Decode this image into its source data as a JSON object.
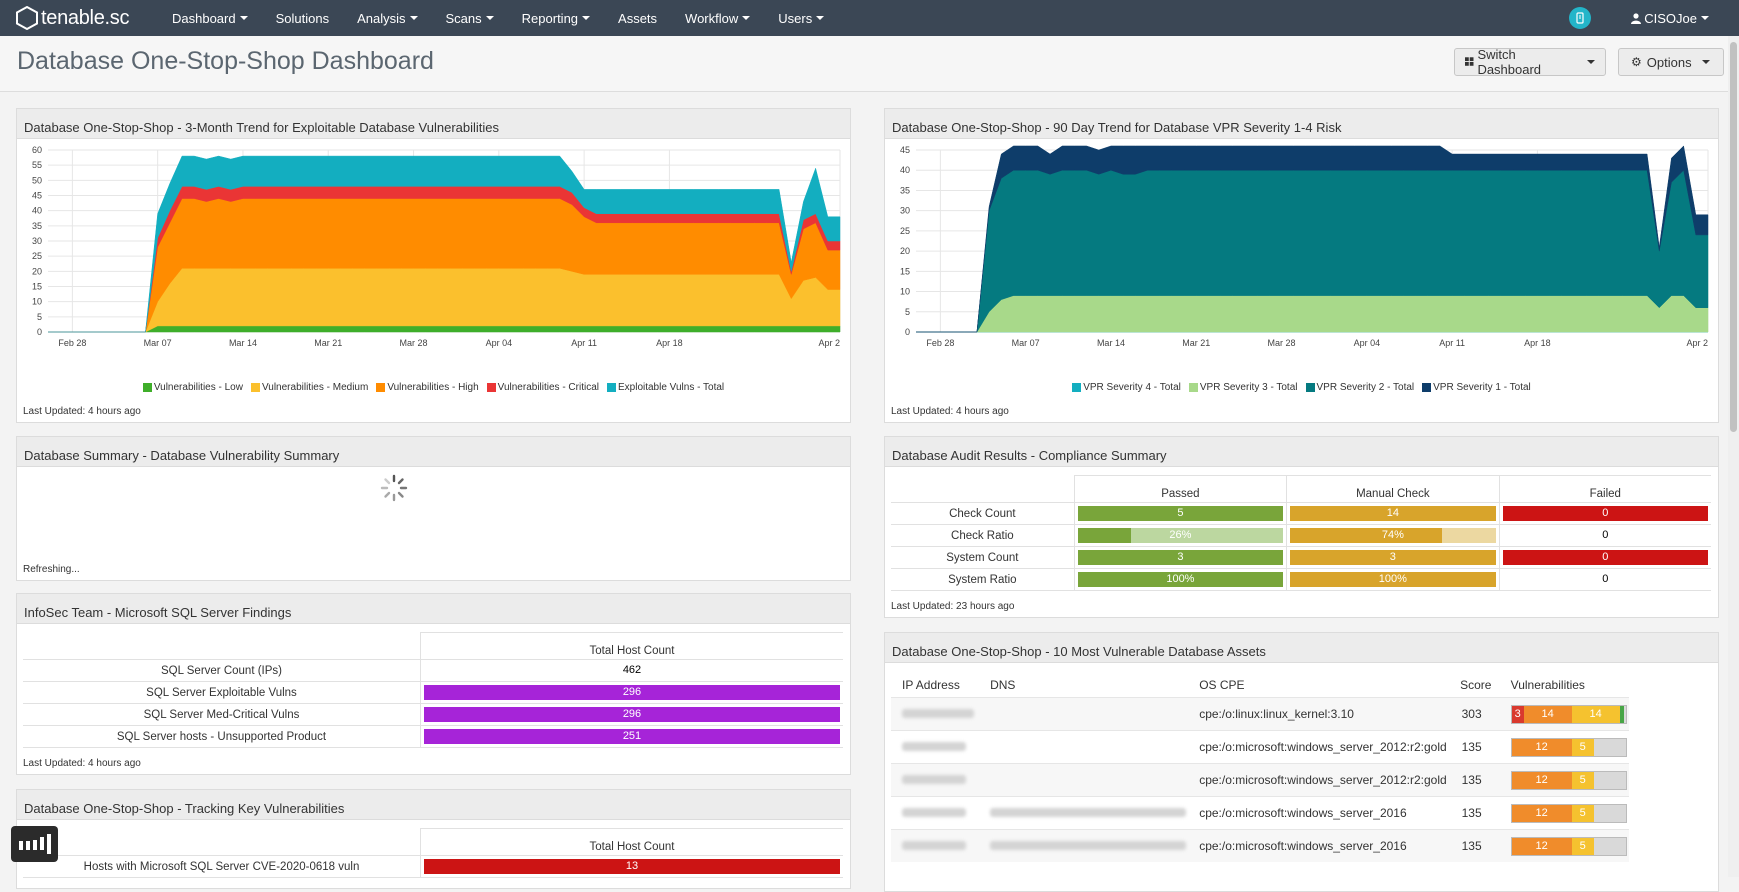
{
  "app": {
    "logo_text": "tenable.sc"
  },
  "nav": {
    "items": [
      {
        "label": "Dashboard",
        "caret": true
      },
      {
        "label": "Solutions",
        "caret": false
      },
      {
        "label": "Analysis",
        "caret": true
      },
      {
        "label": "Scans",
        "caret": true
      },
      {
        "label": "Reporting",
        "caret": true
      },
      {
        "label": "Assets",
        "caret": false
      },
      {
        "label": "Workflow",
        "caret": true
      },
      {
        "label": "Users",
        "caret": true
      }
    ],
    "user": "CISOJoe"
  },
  "page": {
    "title": "Database One-Stop-Shop Dashboard",
    "switch_dashboard": "Switch Dashboard",
    "options": "Options"
  },
  "panels": {
    "trend_exploitable": {
      "title": "Database One-Stop-Shop - 3-Month Trend for Exploitable Database Vulnerabilities",
      "last_updated": "Last Updated: 4 hours ago"
    },
    "trend_vpr": {
      "title": "Database One-Stop-Shop - 90 Day Trend for Database VPR Severity 1-4 Risk",
      "last_updated": "Last Updated: 4 hours ago"
    },
    "db_summary": {
      "title": "Database Summary - Database Vulnerability Summary",
      "status": "Refreshing..."
    },
    "audit": {
      "title": "Database Audit Results - Compliance Summary",
      "last_updated": "Last Updated: 23 hours ago",
      "columns": [
        "Passed",
        "Manual Check",
        "Failed"
      ],
      "rows": [
        {
          "label": "Check Count",
          "passed": "5",
          "manual": "14",
          "failed": "0"
        },
        {
          "label": "Check Ratio",
          "passed": "26%",
          "manual": "74%",
          "failed": "0"
        },
        {
          "label": "System Count",
          "passed": "3",
          "manual": "3",
          "failed": "0"
        },
        {
          "label": "System Ratio",
          "passed": "100%",
          "manual": "100%",
          "failed": "0"
        }
      ],
      "check_ratio_passed_fraction": 0.26,
      "check_ratio_manual_fraction": 0.74,
      "colors": {
        "passed": "#79a53a",
        "passed_light": "#bcd7a0",
        "manual": "#d8a42b",
        "manual_light": "#ecd8a1",
        "failed": "#cc1414"
      }
    },
    "infosec": {
      "title": "InfoSec Team - Microsoft SQL Server Findings",
      "last_updated": "Last Updated: 4 hours ago",
      "column": "Total Host Count",
      "rows": [
        {
          "label": "SQL Server Count (IPs)",
          "value": "462",
          "bar": false
        },
        {
          "label": "SQL Server Exploitable Vulns",
          "value": "296",
          "bar": true
        },
        {
          "label": "SQL Server Med-Critical Vulns",
          "value": "296",
          "bar": true
        },
        {
          "label": "SQL Server hosts - Unsupported Product",
          "value": "251",
          "bar": true
        }
      ],
      "bar_color": "#a624d8"
    },
    "tracking": {
      "title": "Database One-Stop-Shop - Tracking Key Vulnerabilities",
      "column": "Total Host Count",
      "rows": [
        {
          "label": "Hosts with Microsoft SQL Server CVE-2020-0618 vuln",
          "value": "13"
        }
      ],
      "bar_color": "#cc1414"
    },
    "assets": {
      "title": "Database One-Stop-Shop - 10 Most Vulnerable Database Assets",
      "columns": [
        "IP Address",
        "DNS",
        "OS CPE",
        "Score",
        "Vulnerabilities"
      ],
      "rows": [
        {
          "cpe": "cpe:/o:linux:linux_kernel:3.10",
          "score": "303",
          "vulns": [
            {
              "v": "3",
              "c": "#d9392e"
            },
            {
              "v": "14",
              "c": "#f08c2b"
            },
            {
              "v": "14",
              "c": "#f5c22f"
            },
            {
              "v": "",
              "c": "#47a546"
            }
          ]
        },
        {
          "cpe": "cpe:/o:microsoft:windows_server_2012:r2:gold",
          "score": "135",
          "vulns": [
            {
              "v": "12",
              "c": "#f08c2b"
            },
            {
              "v": "5",
              "c": "#f5c22f"
            }
          ]
        },
        {
          "cpe": "cpe:/o:microsoft:windows_server_2012:r2:gold",
          "score": "135",
          "vulns": [
            {
              "v": "12",
              "c": "#f08c2b"
            },
            {
              "v": "5",
              "c": "#f5c22f"
            }
          ]
        },
        {
          "cpe": "cpe:/o:microsoft:windows_server_2016",
          "score": "135",
          "vulns": [
            {
              "v": "12",
              "c": "#f08c2b"
            },
            {
              "v": "5",
              "c": "#f5c22f"
            }
          ]
        },
        {
          "cpe": "cpe:/o:microsoft:windows_server_2016",
          "score": "135",
          "vulns": [
            {
              "v": "12",
              "c": "#f08c2b"
            },
            {
              "v": "5",
              "c": "#f5c22f"
            }
          ]
        }
      ]
    }
  },
  "chart_data": [
    {
      "type": "area",
      "stacked": true,
      "x": [
        "Feb 26",
        "Feb 27",
        "Feb 28",
        "Mar 01",
        "Mar 02",
        "Mar 03",
        "Mar 04",
        "Mar 05",
        "Mar 06",
        "Mar 07",
        "Mar 08",
        "Mar 09",
        "Mar 10",
        "Mar 11",
        "Mar 12",
        "Mar 13",
        "Mar 14",
        "Mar 15",
        "Mar 16",
        "Mar 17",
        "Mar 18",
        "Mar 19",
        "Mar 20",
        "Mar 21",
        "Mar 22",
        "Mar 23",
        "Mar 24",
        "Mar 25",
        "Mar 26",
        "Mar 27",
        "Mar 28",
        "Mar 29",
        "Mar 30",
        "Mar 31",
        "Apr 01",
        "Apr 02",
        "Apr 03",
        "Apr 04",
        "Apr 05",
        "Apr 06",
        "Apr 07",
        "Apr 08",
        "Apr 09",
        "Apr 10",
        "Apr 11",
        "Apr 12",
        "Apr 13",
        "Apr 14",
        "Apr 15",
        "Apr 16",
        "Apr 17",
        "Apr 18",
        "Apr 19",
        "Apr 20",
        "Apr 21",
        "Apr 22",
        "Apr 23",
        "Apr 24",
        "Apr 25",
        "Apr 26",
        "Apr 27",
        "Apr 28",
        "Apr 29",
        "Apr 30",
        "May 01",
        "May 02"
      ],
      "x_ticks": [
        "Feb 28",
        "Mar 07",
        "Mar 14",
        "Mar 21",
        "Mar 28",
        "Apr 04",
        "Apr 11",
        "Apr 18",
        "Apr 2"
      ],
      "series": [
        {
          "name": "Vulnerabilities - Low",
          "color": "#3fae2a",
          "values": [
            0,
            0,
            0,
            0,
            0,
            0,
            0,
            0,
            0,
            2,
            2,
            2,
            2,
            2,
            2,
            2,
            2,
            2,
            2,
            2,
            2,
            2,
            2,
            2,
            2,
            2,
            2,
            2,
            2,
            2,
            2,
            2,
            2,
            2,
            2,
            2,
            2,
            2,
            2,
            2,
            2,
            2,
            2,
            2,
            2,
            2,
            2,
            2,
            2,
            2,
            2,
            2,
            2,
            2,
            2,
            2,
            2,
            2,
            2,
            2,
            2,
            2,
            2,
            2,
            2,
            2
          ]
        },
        {
          "name": "Vulnerabilities - Medium",
          "color": "#fbc02d",
          "values": [
            0,
            0,
            0,
            0,
            0,
            0,
            0,
            0,
            0,
            8,
            14,
            19,
            19,
            19,
            19,
            19,
            19,
            19,
            19,
            19,
            19,
            19,
            19,
            19,
            19,
            19,
            19,
            19,
            19,
            19,
            19,
            19,
            19,
            19,
            19,
            19,
            19,
            19,
            19,
            19,
            19,
            19,
            19,
            18,
            17,
            17,
            17,
            17,
            17,
            17,
            17,
            17,
            17,
            17,
            17,
            17,
            17,
            17,
            17,
            17,
            17,
            9,
            15,
            16,
            12,
            12
          ]
        },
        {
          "name": "Vulnerabilities - High",
          "color": "#ff8c00",
          "values": [
            0,
            0,
            0,
            0,
            0,
            0,
            0,
            0,
            0,
            18,
            20,
            23,
            23,
            22,
            23,
            22,
            23,
            23,
            23,
            23,
            23,
            23,
            23,
            23,
            23,
            23,
            23,
            23,
            23,
            23,
            23,
            23,
            23,
            23,
            23,
            23,
            23,
            23,
            23,
            23,
            23,
            23,
            23,
            22,
            19,
            17,
            17,
            17,
            17,
            17,
            17,
            17,
            17,
            17,
            17,
            17,
            17,
            17,
            17,
            17,
            17,
            8,
            17,
            18,
            13,
            13
          ]
        },
        {
          "name": "Vulnerabilities - Critical",
          "color": "#ea3535",
          "values": [
            0,
            0,
            0,
            0,
            0,
            0,
            0,
            0,
            0,
            3,
            4,
            4,
            4,
            4,
            4,
            4,
            4,
            4,
            4,
            4,
            4,
            4,
            4,
            4,
            4,
            4,
            4,
            4,
            4,
            4,
            4,
            4,
            4,
            4,
            4,
            4,
            4,
            4,
            4,
            4,
            4,
            4,
            4,
            4,
            3,
            3,
            3,
            3,
            3,
            3,
            3,
            3,
            3,
            3,
            3,
            3,
            3,
            3,
            3,
            3,
            3,
            1,
            3,
            3,
            3,
            3
          ]
        },
        {
          "name": "Exploitable Vulns - Total",
          "color": "#13aec0",
          "values": [
            0,
            0,
            0,
            0,
            0,
            0,
            0,
            0,
            0,
            8,
            9,
            10,
            10,
            10,
            10,
            10,
            10,
            10,
            10,
            10,
            10,
            10,
            10,
            10,
            10,
            10,
            10,
            10,
            10,
            10,
            10,
            10,
            10,
            10,
            10,
            10,
            10,
            10,
            10,
            10,
            10,
            10,
            10,
            7,
            6,
            8,
            8,
            8,
            8,
            8,
            8,
            8,
            8,
            8,
            8,
            8,
            8,
            8,
            8,
            8,
            8,
            3,
            6,
            15,
            8,
            8
          ]
        }
      ],
      "ylim": [
        0,
        60
      ],
      "y_ticks": [
        0,
        5,
        10,
        15,
        20,
        25,
        30,
        35,
        40,
        45,
        50,
        55,
        60
      ],
      "legend": "bottom"
    },
    {
      "type": "area",
      "stacked": true,
      "x": [
        "Feb 26",
        "Feb 27",
        "Feb 28",
        "Mar 01",
        "Mar 02",
        "Mar 03",
        "Mar 04",
        "Mar 05",
        "Mar 06",
        "Mar 07",
        "Mar 08",
        "Mar 09",
        "Mar 10",
        "Mar 11",
        "Mar 12",
        "Mar 13",
        "Mar 14",
        "Mar 15",
        "Mar 16",
        "Mar 17",
        "Mar 18",
        "Mar 19",
        "Mar 20",
        "Mar 21",
        "Mar 22",
        "Mar 23",
        "Mar 24",
        "Mar 25",
        "Mar 26",
        "Mar 27",
        "Mar 28",
        "Mar 29",
        "Mar 30",
        "Mar 31",
        "Apr 01",
        "Apr 02",
        "Apr 03",
        "Apr 04",
        "Apr 05",
        "Apr 06",
        "Apr 07",
        "Apr 08",
        "Apr 09",
        "Apr 10",
        "Apr 11",
        "Apr 12",
        "Apr 13",
        "Apr 14",
        "Apr 15",
        "Apr 16",
        "Apr 17",
        "Apr 18",
        "Apr 19",
        "Apr 20",
        "Apr 21",
        "Apr 22",
        "Apr 23",
        "Apr 24",
        "Apr 25",
        "Apr 26",
        "Apr 27",
        "Apr 28",
        "Apr 29",
        "Apr 30",
        "May 01",
        "May 02"
      ],
      "x_ticks": [
        "Feb 28",
        "Mar 07",
        "Mar 14",
        "Mar 21",
        "Mar 28",
        "Apr 04",
        "Apr 11",
        "Apr 18",
        "Apr 2"
      ],
      "series": [
        {
          "name": "VPR Severity 4 - Total",
          "color": "#13aec0",
          "values": [
            0,
            0,
            0,
            0,
            0,
            0,
            0,
            0,
            0,
            0,
            0,
            0,
            0,
            0,
            0,
            0,
            0,
            0,
            0,
            0,
            0,
            0,
            0,
            0,
            0,
            0,
            0,
            0,
            0,
            0,
            0,
            0,
            0,
            0,
            0,
            0,
            0,
            0,
            0,
            0,
            0,
            0,
            0,
            0,
            0,
            0,
            0,
            0,
            0,
            0,
            0,
            0,
            0,
            0,
            0,
            0,
            0,
            0,
            0,
            0,
            0,
            0,
            0,
            0,
            0,
            0
          ]
        },
        {
          "name": "VPR Severity 3 - Total",
          "color": "#a8d98a",
          "values": [
            0,
            0,
            0,
            0,
            0,
            0,
            5,
            8,
            9,
            9,
            9,
            9,
            9,
            9,
            9,
            9,
            9,
            9,
            9,
            9,
            9,
            9,
            9,
            9,
            9,
            9,
            9,
            9,
            9,
            9,
            9,
            9,
            9,
            9,
            9,
            9,
            9,
            9,
            9,
            9,
            9,
            9,
            9,
            9,
            9,
            9,
            9,
            9,
            9,
            9,
            9,
            9,
            9,
            9,
            9,
            9,
            9,
            9,
            9,
            9,
            9,
            6,
            9,
            9,
            6,
            6
          ]
        },
        {
          "name": "VPR Severity 2 - Total",
          "color": "#057a80",
          "values": [
            0,
            0,
            0,
            0,
            0,
            0,
            25,
            30,
            31,
            31,
            31,
            30,
            31,
            31,
            31,
            30,
            31,
            30,
            30,
            31,
            31,
            31,
            31,
            31,
            31,
            31,
            31,
            31,
            31,
            31,
            31,
            31,
            31,
            31,
            31,
            31,
            31,
            31,
            31,
            31,
            31,
            31,
            31,
            31,
            31,
            31,
            31,
            31,
            31,
            31,
            31,
            31,
            31,
            31,
            31,
            31,
            31,
            31,
            31,
            31,
            31,
            14,
            28,
            31,
            18,
            18
          ]
        },
        {
          "name": "VPR Severity 1 - Total",
          "color": "#0e3d6a",
          "values": [
            0,
            0,
            0,
            0,
            0,
            0,
            1,
            6,
            6,
            6,
            6,
            5,
            6,
            6,
            6,
            6,
            6,
            7,
            7,
            6,
            6,
            6,
            6,
            6,
            6,
            6,
            6,
            6,
            6,
            6,
            6,
            6,
            6,
            6,
            6,
            6,
            6,
            6,
            6,
            6,
            6,
            6,
            6,
            6,
            4,
            4,
            4,
            4,
            4,
            4,
            4,
            4,
            4,
            4,
            4,
            4,
            4,
            4,
            4,
            4,
            4,
            1,
            6,
            6,
            5,
            5
          ]
        }
      ],
      "ylim": [
        0,
        45
      ],
      "y_ticks": [
        0,
        5,
        10,
        15,
        20,
        25,
        30,
        35,
        40,
        45
      ],
      "legend": "bottom"
    }
  ]
}
